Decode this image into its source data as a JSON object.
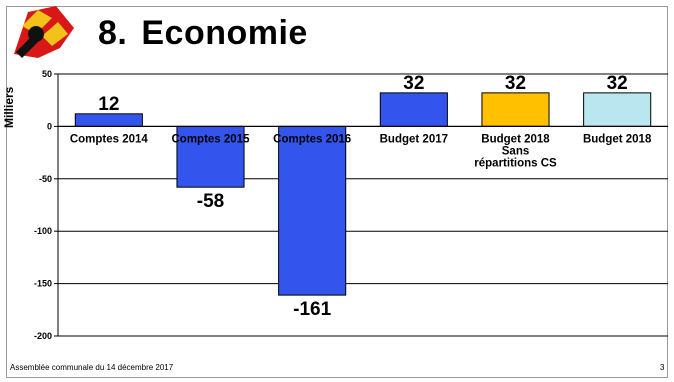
{
  "slide": {
    "number": "8.",
    "title": "Economie",
    "footer": "Assemblée communale du 14 décembre 2017",
    "page": "3"
  },
  "chart_data": {
    "type": "bar",
    "ylabel": "Milliers",
    "xlabel": "",
    "ylim": [
      -200,
      50
    ],
    "yticks": [
      50,
      0,
      -50,
      -100,
      -150,
      -200
    ],
    "grid": true,
    "categories": [
      "Comptes 2014",
      "Comptes 2015",
      "Comptes 2016",
      "Budget 2017",
      "Budget 2018 Sans répartitions CS",
      "Budget 2018"
    ],
    "category_lines": [
      [
        "Comptes 2014"
      ],
      [
        "Comptes 2015"
      ],
      [
        "Comptes 2016"
      ],
      [
        "Budget 2017"
      ],
      [
        "Budget 2018",
        "Sans",
        "répartitions CS"
      ],
      [
        "Budget 2018"
      ]
    ],
    "values": [
      12,
      -58,
      -161,
      32,
      32,
      32
    ],
    "colors": [
      "#3355ee",
      "#3355ee",
      "#3355ee",
      "#3355ee",
      "#ffc000",
      "#b9e6ef"
    ]
  }
}
